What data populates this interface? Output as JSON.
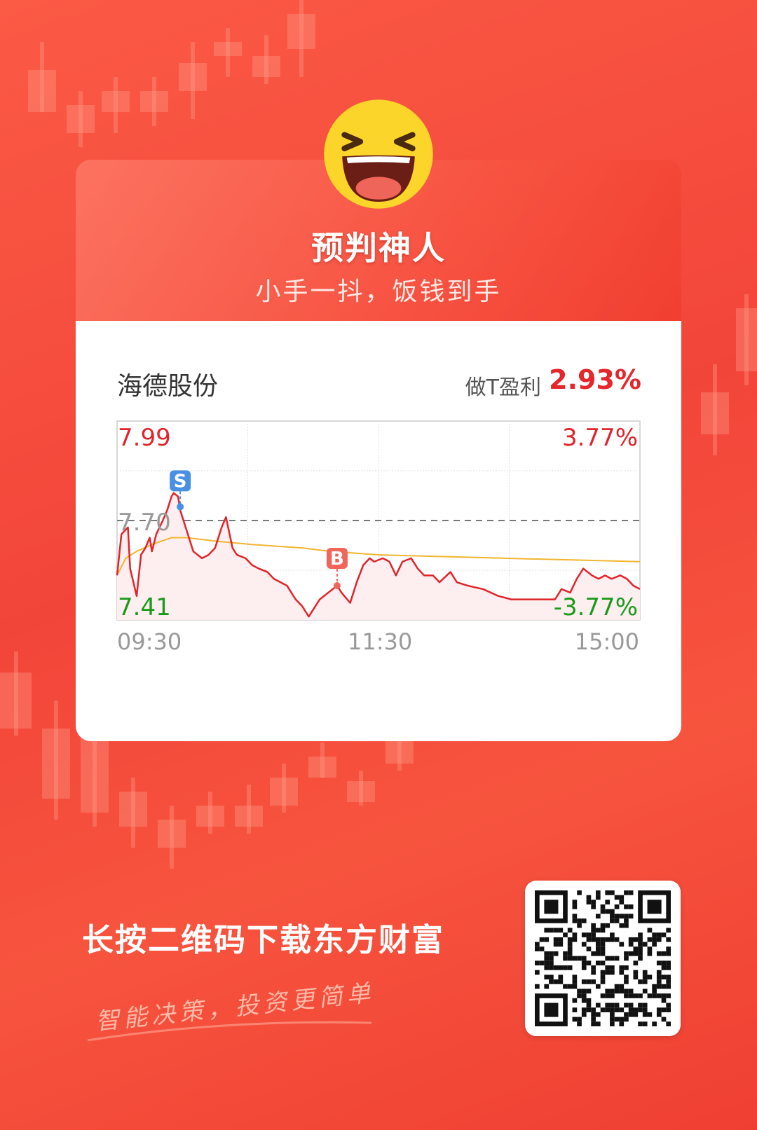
{
  "header": {
    "title": "预判神人",
    "subtitle": "小手一抖，饭钱到手"
  },
  "stock": {
    "name": "海德股份",
    "profit_label": "做T盈利",
    "profit_value": "2.93%"
  },
  "chart_data": {
    "type": "line",
    "y_left_labels": {
      "high": "7.99",
      "mid": "7.70",
      "low": "7.41"
    },
    "y_right_labels": {
      "high": "3.77%",
      "low": "-3.77%"
    },
    "x_tick_labels": [
      "09:30",
      "11:30",
      "15:00"
    ],
    "ylim": [
      7.41,
      7.99
    ],
    "prev_close": 7.7,
    "grid": true,
    "colors": {
      "price": "#e0242a",
      "average": "#f1b531",
      "up": "#e0242a",
      "down": "#1a9a1a",
      "fill": "#fdeef0"
    },
    "price": [
      [
        "09:30",
        7.54
      ],
      [
        "09:32",
        7.66
      ],
      [
        "09:35",
        7.68
      ],
      [
        "09:36",
        7.56
      ],
      [
        "09:39",
        7.48
      ],
      [
        "09:41",
        7.6
      ],
      [
        "09:43",
        7.62
      ],
      [
        "09:45",
        7.65
      ],
      [
        "09:46",
        7.61
      ],
      [
        "09:48",
        7.66
      ],
      [
        "09:51",
        7.7
      ],
      [
        "09:53",
        7.73
      ],
      [
        "09:55",
        7.77
      ],
      [
        "09:56",
        7.78
      ],
      [
        "09:58",
        7.77
      ],
      [
        "09:59",
        7.73
      ],
      [
        "10:01",
        7.69
      ],
      [
        "10:03",
        7.65
      ],
      [
        "10:05",
        7.61
      ],
      [
        "10:09",
        7.59
      ],
      [
        "10:12",
        7.6
      ],
      [
        "10:15",
        7.62
      ],
      [
        "10:18",
        7.68
      ],
      [
        "10:20",
        7.71
      ],
      [
        "10:23",
        7.62
      ],
      [
        "10:25",
        7.6
      ],
      [
        "10:29",
        7.59
      ],
      [
        "10:32",
        7.57
      ],
      [
        "10:35",
        7.56
      ],
      [
        "10:39",
        7.55
      ],
      [
        "10:42",
        7.53
      ],
      [
        "10:45",
        7.52
      ],
      [
        "10:48",
        7.51
      ],
      [
        "10:52",
        7.47
      ],
      [
        "10:55",
        7.45
      ],
      [
        "10:58",
        7.42
      ],
      [
        "11:00",
        7.44
      ],
      [
        "11:03",
        7.47
      ],
      [
        "11:07",
        7.49
      ],
      [
        "11:11",
        7.51
      ],
      [
        "11:13",
        7.49
      ],
      [
        "11:17",
        7.46
      ],
      [
        "11:20",
        7.52
      ],
      [
        "11:23",
        7.57
      ],
      [
        "11:26",
        7.59
      ],
      [
        "11:28",
        7.58
      ],
      [
        "13:02",
        7.59
      ],
      [
        "13:05",
        7.58
      ],
      [
        "13:08",
        7.54
      ],
      [
        "13:11",
        7.58
      ],
      [
        "13:15",
        7.59
      ],
      [
        "13:18",
        7.56
      ],
      [
        "13:21",
        7.54
      ],
      [
        "13:25",
        7.54
      ],
      [
        "13:28",
        7.52
      ],
      [
        "13:33",
        7.55
      ],
      [
        "13:36",
        7.52
      ],
      [
        "13:41",
        7.51
      ],
      [
        "13:48",
        7.5
      ],
      [
        "13:55",
        7.48
      ],
      [
        "14:01",
        7.47
      ],
      [
        "14:08",
        7.47
      ],
      [
        "14:14",
        7.47
      ],
      [
        "14:21",
        7.47
      ],
      [
        "14:24",
        7.5
      ],
      [
        "14:28",
        7.49
      ],
      [
        "14:31",
        7.53
      ],
      [
        "14:34",
        7.56
      ],
      [
        "14:38",
        7.54
      ],
      [
        "14:41",
        7.53
      ],
      [
        "14:44",
        7.54
      ],
      [
        "14:47",
        7.53
      ],
      [
        "14:51",
        7.54
      ],
      [
        "14:54",
        7.53
      ],
      [
        "14:57",
        7.51
      ],
      [
        "15:00",
        7.5
      ]
    ],
    "average": [
      [
        "09:30",
        7.54
      ],
      [
        "09:34",
        7.59
      ],
      [
        "09:39",
        7.61
      ],
      [
        "09:46",
        7.63
      ],
      [
        "09:55",
        7.65
      ],
      [
        "10:02",
        7.65
      ],
      [
        "10:15",
        7.64
      ],
      [
        "10:32",
        7.63
      ],
      [
        "10:55",
        7.62
      ],
      [
        "11:08",
        7.61
      ],
      [
        "11:30",
        7.6
      ],
      [
        "13:58",
        7.59
      ],
      [
        "15:00",
        7.58
      ]
    ],
    "markers": [
      {
        "label": "S",
        "time": "09:59",
        "price": 7.74,
        "color": "#4a90e2"
      },
      {
        "label": "B",
        "time": "11:11",
        "price": 7.51,
        "color": "#f0665a"
      }
    ]
  },
  "footer": {
    "cta": "长按二维码下载东方财富",
    "slogan": "智能决策，投资更简单"
  }
}
